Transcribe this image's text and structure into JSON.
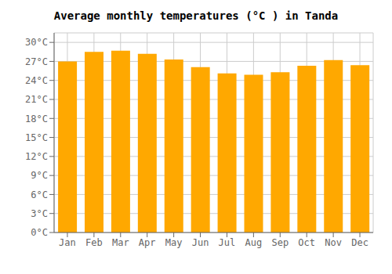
{
  "chart_data": {
    "type": "bar",
    "title": "Average monthly temperatures (°C ) in Tanda",
    "categories": [
      "Jan",
      "Feb",
      "Mar",
      "Apr",
      "May",
      "Jun",
      "Jul",
      "Aug",
      "Sep",
      "Oct",
      "Nov",
      "Dec"
    ],
    "values": [
      27.0,
      28.5,
      28.7,
      28.2,
      27.3,
      26.1,
      25.1,
      24.9,
      25.3,
      26.3,
      27.2,
      26.4
    ],
    "color": "#FFA800",
    "ylim": [
      0,
      31.5
    ],
    "yticks": [
      {
        "value": 0,
        "label": "0°C"
      },
      {
        "value": 3,
        "label": "3°C"
      },
      {
        "value": 6,
        "label": "6°C"
      },
      {
        "value": 9,
        "label": "9°C"
      },
      {
        "value": 12,
        "label": "12°C"
      },
      {
        "value": 15,
        "label": "15°C"
      },
      {
        "value": 18,
        "label": "18°C"
      },
      {
        "value": 21,
        "label": "21°C"
      },
      {
        "value": 24,
        "label": "24°C"
      },
      {
        "value": 27,
        "label": "27°C"
      },
      {
        "value": 30,
        "label": "30°C"
      }
    ],
    "grid": true
  }
}
